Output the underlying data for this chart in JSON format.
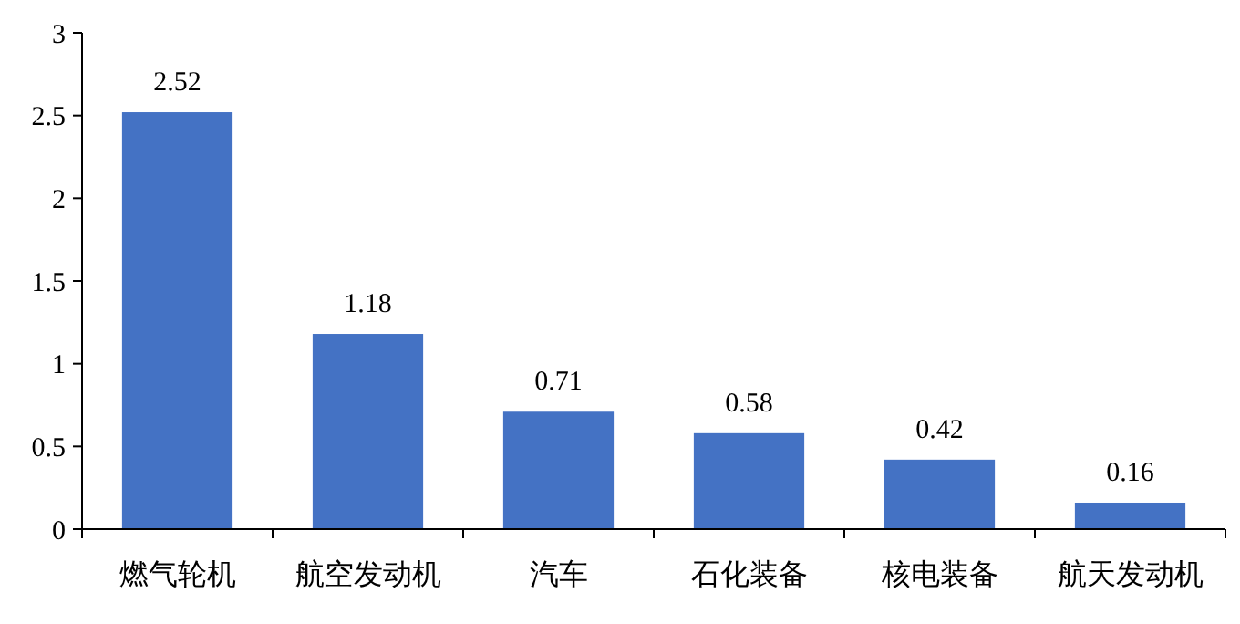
{
  "chart_data": {
    "type": "bar",
    "categories": [
      "燃气轮机",
      "航空发动机",
      "汽车",
      "石化装备",
      "核电装备",
      "航天发动机"
    ],
    "values": [
      2.52,
      1.18,
      0.71,
      0.58,
      0.42,
      0.16
    ],
    "color": "#4472c4",
    "ylim": [
      0,
      3
    ],
    "yticks": [
      0,
      0.5,
      1,
      1.5,
      2,
      2.5,
      3
    ],
    "grid": false,
    "data_labels": true
  }
}
